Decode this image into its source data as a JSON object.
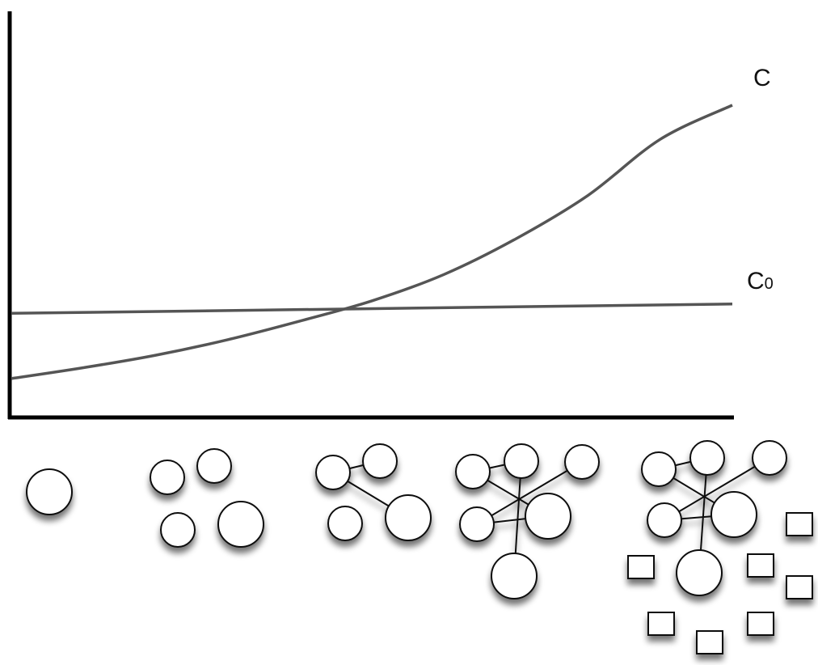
{
  "chart_data": {
    "type": "line",
    "title": "",
    "xlabel": "",
    "ylabel": "",
    "grid": false,
    "legend": "none",
    "xlim": [
      0,
      1
    ],
    "ylim": [
      0,
      1
    ],
    "series": [
      {
        "name": "C",
        "color": "#555555",
        "x": [
          0,
          0.1,
          0.2,
          0.3,
          0.4,
          0.5,
          0.6,
          0.7,
          0.8,
          0.9,
          1.0
        ],
        "y": [
          0.12,
          0.155,
          0.195,
          0.245,
          0.305,
          0.37,
          0.455,
          0.57,
          0.71,
          0.89,
          1.0
        ]
      },
      {
        "name": "C",
        "subscript": "0",
        "color": "#555555",
        "x": [
          0,
          1.0
        ],
        "y": [
          0.33,
          0.36
        ]
      }
    ]
  },
  "colors": {
    "axis": "#000000",
    "curve": "#555555",
    "node_fill": "#ffffff",
    "node_stroke": "#111111"
  },
  "network_stages": [
    {
      "stage": 1,
      "circles": 1,
      "squares": 0
    },
    {
      "stage": 2,
      "circles": 4,
      "squares": 0
    },
    {
      "stage": 3,
      "circles": 4,
      "squares": 0
    },
    {
      "stage": 4,
      "circles": 6,
      "squares": 0
    },
    {
      "stage": 5,
      "circles": 6,
      "squares": 7
    }
  ]
}
